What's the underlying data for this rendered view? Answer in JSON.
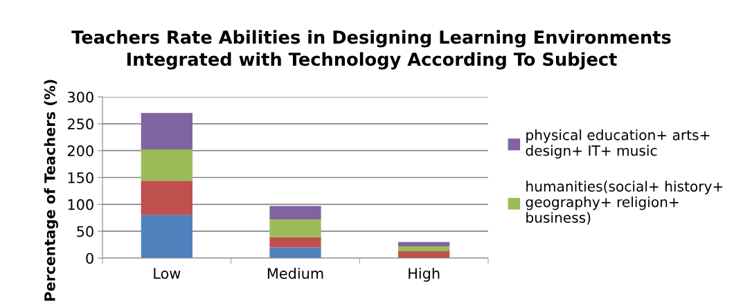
{
  "chart_data": {
    "type": "bar",
    "title": "Teachers Rate Abilities in Designing Learning Environments\nIntegrated with Technology According To Subject",
    "ylabel": "Percentage of Teachers (%)",
    "categories": [
      "Low",
      "Medium",
      "High"
    ],
    "stacked": true,
    "series": [
      {
        "color": "#4f81bd",
        "values": [
          80,
          20,
          null
        ]
      },
      {
        "color": "#c0504d",
        "values": [
          64,
          19,
          13
        ]
      },
      {
        "name": "humanities(social+ history+\ngeography+ religion+\nbusiness)",
        "color": "#9bbb59",
        "values": [
          58,
          33,
          9
        ]
      },
      {
        "name": "physical education+ arts+\ndesign+ IT+ music",
        "color": "#8064a2",
        "values": [
          68,
          25,
          8
        ]
      }
    ],
    "ylim": [
      0,
      300
    ],
    "yticks": [
      0,
      50,
      100,
      150,
      200,
      250,
      300
    ],
    "grid": "y",
    "legend": "right"
  }
}
